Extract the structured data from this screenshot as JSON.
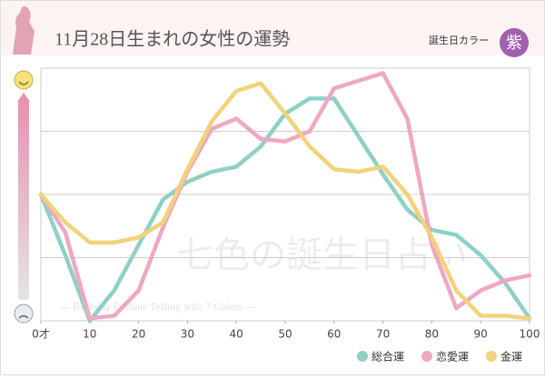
{
  "header": {
    "title": "11月28日生まれの女性の運勢",
    "color_label": "誕生日カラー",
    "color_name": "紫"
  },
  "watermark": {
    "logo": "七色の誕生日占い",
    "tagline": "— Birthday Fortune Telling with 7 Colors —"
  },
  "chart_data": {
    "type": "line",
    "x": [
      0,
      5,
      10,
      15,
      20,
      25,
      30,
      35,
      40,
      45,
      50,
      55,
      60,
      65,
      70,
      75,
      80,
      85,
      90,
      95,
      100
    ],
    "xlim": [
      0,
      100
    ],
    "xticks": [
      {
        "value": 0,
        "label": "0才"
      },
      10,
      20,
      30,
      40,
      50,
      60,
      70,
      80,
      90,
      100
    ],
    "ylim": [
      0,
      100
    ],
    "yticks": [
      0,
      25,
      50,
      75,
      100
    ],
    "grid": true,
    "legend": "bottom-right",
    "series": [
      {
        "name": "総合運",
        "color": "#8fd0c6",
        "values": [
          50,
          26,
          0,
          12,
          30,
          48,
          55,
          59,
          61,
          69,
          82,
          88,
          88,
          73,
          58,
          44,
          36,
          34,
          26,
          15,
          1
        ]
      },
      {
        "name": "恋愛運",
        "color": "#f0a7c1",
        "values": [
          50,
          35,
          1,
          2,
          12,
          37,
          59,
          76,
          80,
          72,
          71,
          75,
          92,
          95,
          98,
          80,
          30,
          5,
          12,
          16,
          18
        ]
      },
      {
        "name": "金運",
        "color": "#f2d27a",
        "values": [
          50,
          39,
          31,
          31,
          33,
          39,
          60,
          79,
          91,
          94,
          82,
          69,
          60,
          59,
          61,
          50,
          33,
          12,
          2,
          2,
          1
        ]
      }
    ]
  }
}
